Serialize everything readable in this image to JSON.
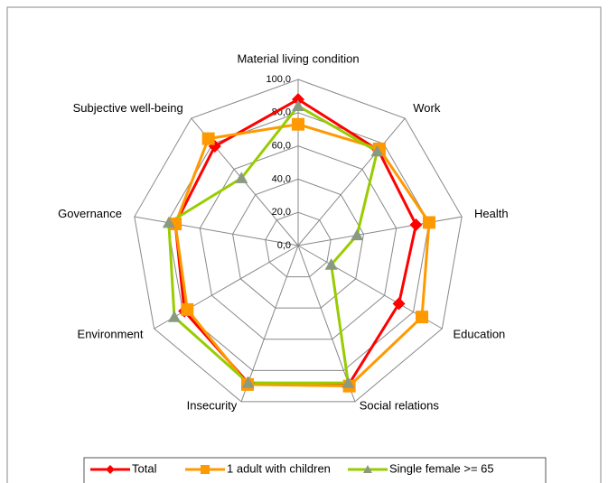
{
  "chart_data": {
    "type": "radar",
    "categories": [
      "Material living condition",
      "Work",
      "Health",
      "Education",
      "Social relations",
      "Insecurity",
      "Environment",
      "Governance",
      "Subjective well-being"
    ],
    "series": [
      {
        "name": "Total",
        "color": "#ff0000",
        "marker": "diamond",
        "values": [
          88,
          75,
          72,
          70,
          89,
          88,
          79,
          75,
          78
        ]
      },
      {
        "name": "1 adult with children",
        "color": "#ff9900",
        "marker": "square",
        "values": [
          73,
          76,
          80,
          86,
          90,
          89,
          77,
          75,
          84
        ]
      },
      {
        "name": "Single female >= 65",
        "color": "#99cc00",
        "marker": "triangle",
        "values": [
          84,
          74,
          36,
          23,
          88,
          88,
          86,
          79,
          53
        ]
      }
    ],
    "ylim": [
      0,
      100
    ],
    "yticks": [
      {
        "value": 0,
        "label": "0,0"
      },
      {
        "value": 20,
        "label": "20,0"
      },
      {
        "value": 40,
        "label": "40,0"
      },
      {
        "value": 60,
        "label": "60,0"
      },
      {
        "value": 80,
        "label": "80,0"
      },
      {
        "value": 100,
        "label": "100,0"
      }
    ],
    "grid": true,
    "legend": "bottom"
  }
}
